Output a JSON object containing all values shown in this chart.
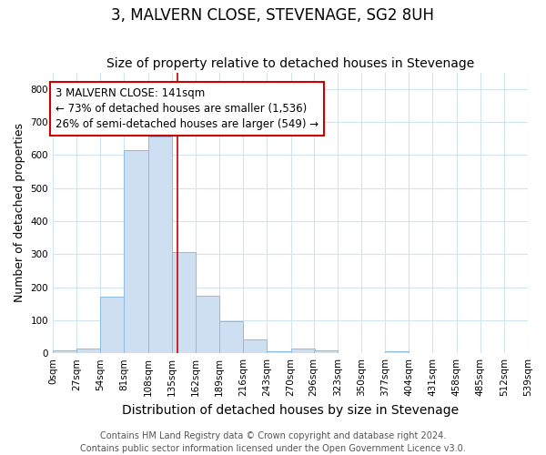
{
  "title": "3, MALVERN CLOSE, STEVENAGE, SG2 8UH",
  "subtitle": "Size of property relative to detached houses in Stevenage",
  "xlabel": "Distribution of detached houses by size in Stevenage",
  "ylabel": "Number of detached properties",
  "bin_edges": [
    0,
    27,
    54,
    81,
    108,
    135,
    162,
    189,
    216,
    243,
    270,
    296,
    323,
    350,
    377,
    404,
    431,
    458,
    485,
    512,
    539
  ],
  "bar_heights": [
    8,
    13,
    170,
    615,
    655,
    305,
    175,
    97,
    42,
    5,
    15,
    10,
    0,
    0,
    5,
    0,
    0,
    0,
    0,
    0
  ],
  "property_size": 141,
  "bar_color": "#cddff0",
  "bar_edge_color": "#8bbce0",
  "red_color": "#cc0000",
  "annotation_text": "3 MALVERN CLOSE: 141sqm\n← 73% of detached houses are smaller (1,536)\n26% of semi-detached houses are larger (549) →",
  "annotation_box_color": "white",
  "annotation_box_edge_color": "#cc0000",
  "ylim": [
    0,
    850
  ],
  "yticks": [
    0,
    100,
    200,
    300,
    400,
    500,
    600,
    700,
    800
  ],
  "footnote": "Contains HM Land Registry data © Crown copyright and database right 2024.\nContains public sector information licensed under the Open Government Licence v3.0.",
  "title_fontsize": 12,
  "subtitle_fontsize": 10,
  "xlabel_fontsize": 10,
  "ylabel_fontsize": 9,
  "tick_fontsize": 7.5,
  "annotation_fontsize": 8.5,
  "footnote_fontsize": 7
}
